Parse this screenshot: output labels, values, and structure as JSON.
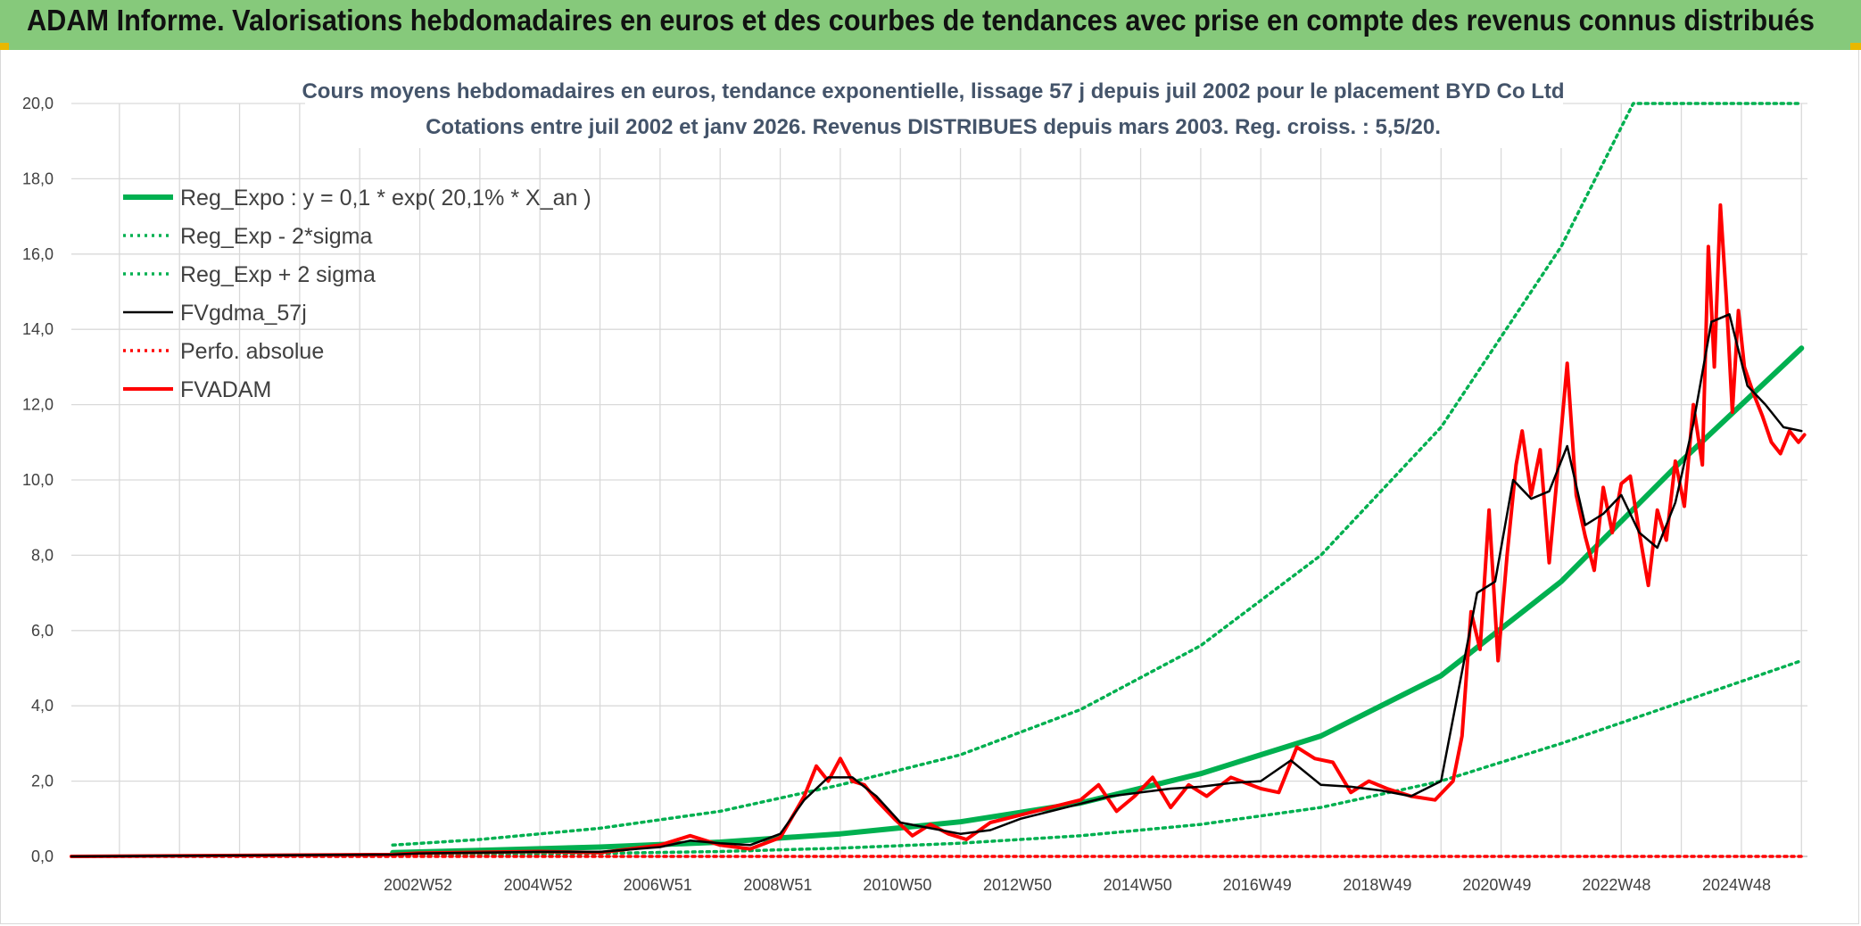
{
  "header": {
    "title": "ADAM Informe. Valorisations hebdomadaires en euros et des courbes de tendances avec prise en compte des revenus connus distribués"
  },
  "colors": {
    "header_bg": "#86c97b",
    "green": "#00b050",
    "red": "#ff0000",
    "black": "#000000",
    "grid": "#d9d9d9"
  },
  "chart_data": {
    "type": "line",
    "title": "Cours moyens hebdomadaires en euros, tendance exponentielle, lissage 57 j depuis juil 2002 pour le placement BYD Co Ltd",
    "subtitle": "Cotations entre juil 2002 et janv 2026. Revenus DISTRIBUES depuis mars 2003. Reg. croiss. : 5,5/20.",
    "ylim": [
      0,
      20
    ],
    "xlim": [
      1997.2,
      2026.1
    ],
    "y_ticks": [
      "0,0",
      "2,0",
      "4,0",
      "6,0",
      "8,0",
      "10,0",
      "12,0",
      "14,0",
      "16,0",
      "18,0",
      "20,0"
    ],
    "x_tick_labels": [
      {
        "label": "2002W52",
        "x": 2002.97
      },
      {
        "label": "2004W52",
        "x": 2004.97
      },
      {
        "label": "2006W51",
        "x": 2006.96
      },
      {
        "label": "2008W51",
        "x": 2008.96
      },
      {
        "label": "2010W50",
        "x": 2010.95
      },
      {
        "label": "2012W50",
        "x": 2012.95
      },
      {
        "label": "2014W50",
        "x": 2014.95
      },
      {
        "label": "2016W49",
        "x": 2016.94
      },
      {
        "label": "2018W49",
        "x": 2018.94
      },
      {
        "label": "2020W49",
        "x": 2020.93
      },
      {
        "label": "2022W48",
        "x": 2022.92
      },
      {
        "label": "2024W48",
        "x": 2024.92
      }
    ],
    "legend": [
      "Reg_Expo : y = 0,1 * exp( 20,1% *  X_an )",
      "Reg_Exp - 2*sigma",
      "Reg_Exp + 2 sigma",
      "FVgdma_57j",
      "Perfo. absolue",
      "FVADAM"
    ],
    "legend_position": "top-left",
    "grid": true,
    "series": [
      {
        "name": "Reg_Expo : y = 0,1 * exp( 20,1% *  X_an )",
        "style": "solid-thick",
        "color": "#00b050",
        "x": [
          2002.55,
          2004,
          2006,
          2008,
          2010,
          2012,
          2014,
          2016,
          2018,
          2020,
          2022,
          2024,
          2026
        ],
        "y": [
          0.1,
          0.16,
          0.25,
          0.38,
          0.6,
          0.92,
          1.42,
          2.2,
          3.2,
          4.8,
          7.3,
          10.5,
          13.5
        ]
      },
      {
        "name": "Reg_Exp - 2*sigma",
        "style": "dotted",
        "color": "#00b050",
        "x": [
          2002.55,
          2004,
          2006,
          2008,
          2010,
          2012,
          2014,
          2016,
          2018,
          2020,
          2022,
          2024,
          2026
        ],
        "y": [
          0.03,
          0.05,
          0.08,
          0.13,
          0.22,
          0.35,
          0.55,
          0.85,
          1.3,
          2.0,
          3.0,
          4.1,
          5.2
        ]
      },
      {
        "name": "Reg_Exp + 2 sigma",
        "style": "dotted",
        "color": "#00b050",
        "x": [
          2002.55,
          2004,
          2006,
          2008,
          2010,
          2012,
          2014,
          2016,
          2018,
          2020,
          2022,
          2023.2,
          2024,
          2026
        ],
        "y": [
          0.3,
          0.45,
          0.75,
          1.2,
          1.9,
          2.7,
          3.9,
          5.6,
          8.0,
          11.4,
          16.2,
          20.0,
          20.0,
          20.0
        ]
      },
      {
        "name": "FVgdma_57j",
        "style": "solid",
        "color": "#000000",
        "x": [
          1997.2,
          2002.55,
          2003,
          2004,
          2005,
          2006,
          2007,
          2007.5,
          2008,
          2008.5,
          2009,
          2009.4,
          2009.8,
          2010.2,
          2010.6,
          2011,
          2011.5,
          2012,
          2012.5,
          2013,
          2013.5,
          2014,
          2014.5,
          2015,
          2015.5,
          2016,
          2016.5,
          2017,
          2017.5,
          2018,
          2018.5,
          2019,
          2019.5,
          2020,
          2020.3,
          2020.6,
          2020.9,
          2021.2,
          2021.5,
          2021.8,
          2022.1,
          2022.4,
          2022.7,
          2023,
          2023.3,
          2023.6,
          2023.9,
          2024.2,
          2024.5,
          2024.8,
          2025.1,
          2025.4,
          2025.7,
          2026
        ],
        "y": [
          0,
          0.05,
          0.08,
          0.1,
          0.12,
          0.12,
          0.25,
          0.42,
          0.35,
          0.3,
          0.6,
          1.5,
          2.1,
          2.1,
          1.6,
          0.9,
          0.75,
          0.6,
          0.7,
          1.0,
          1.2,
          1.4,
          1.6,
          1.7,
          1.8,
          1.85,
          1.95,
          2.0,
          2.55,
          1.9,
          1.85,
          1.75,
          1.6,
          2.0,
          4.5,
          7.0,
          7.3,
          10.0,
          9.5,
          9.7,
          10.9,
          8.8,
          9.1,
          9.6,
          8.6,
          8.2,
          9.4,
          11.5,
          14.2,
          14.4,
          12.5,
          12.0,
          11.4,
          11.3
        ]
      },
      {
        "name": "Perfo. absolue",
        "style": "dotted",
        "color": "#ff0000",
        "x": [
          1997.2,
          2002.55,
          2026
        ],
        "y": [
          0,
          0,
          0
        ]
      },
      {
        "name": "FVADAM",
        "style": "solid-thick",
        "color": "#ff0000",
        "x": [
          1997.2,
          2002.55,
          2003,
          2004,
          2005,
          2006,
          2007,
          2007.5,
          2008,
          2008.5,
          2009,
          2009.4,
          2009.6,
          2009.8,
          2010,
          2010.2,
          2010.4,
          2010.6,
          2010.9,
          2011.2,
          2011.5,
          2011.8,
          2012.1,
          2012.5,
          2013,
          2013.5,
          2014,
          2014.3,
          2014.6,
          2014.9,
          2015.2,
          2015.5,
          2015.8,
          2016.1,
          2016.5,
          2017,
          2017.3,
          2017.6,
          2017.9,
          2018.2,
          2018.5,
          2018.8,
          2019.1,
          2019.5,
          2019.9,
          2020.2,
          2020.35,
          2020.5,
          2020.65,
          2020.8,
          2020.95,
          2021.1,
          2021.25,
          2021.35,
          2021.5,
          2021.65,
          2021.8,
          2021.95,
          2022.1,
          2022.25,
          2022.4,
          2022.55,
          2022.7,
          2022.85,
          2023,
          2023.15,
          2023.3,
          2023.45,
          2023.6,
          2023.75,
          2023.9,
          2024.05,
          2024.2,
          2024.35,
          2024.45,
          2024.55,
          2024.65,
          2024.75,
          2024.85,
          2024.95,
          2025.05,
          2025.2,
          2025.35,
          2025.5,
          2025.65,
          2025.8,
          2025.95,
          2026.05
        ],
        "y": [
          0,
          0.05,
          0.09,
          0.11,
          0.13,
          0.1,
          0.3,
          0.55,
          0.3,
          0.2,
          0.5,
          1.6,
          2.4,
          2.0,
          2.6,
          2.0,
          1.9,
          1.5,
          1.0,
          0.55,
          0.85,
          0.6,
          0.45,
          0.9,
          1.1,
          1.3,
          1.5,
          1.9,
          1.2,
          1.6,
          2.1,
          1.3,
          1.9,
          1.6,
          2.1,
          1.8,
          1.7,
          2.9,
          2.6,
          2.5,
          1.7,
          2.0,
          1.8,
          1.6,
          1.5,
          2.0,
          3.2,
          6.5,
          5.5,
          9.2,
          5.2,
          8.0,
          10.4,
          11.3,
          9.6,
          10.8,
          7.8,
          10.4,
          13.1,
          9.6,
          8.5,
          7.6,
          9.8,
          8.6,
          9.9,
          10.1,
          8.6,
          7.2,
          9.2,
          8.4,
          10.5,
          9.3,
          12.0,
          10.4,
          16.2,
          13.0,
          17.3,
          14.8,
          11.8,
          14.5,
          13.0,
          12.3,
          11.7,
          11.0,
          10.7,
          11.3,
          11.0,
          11.2
        ]
      }
    ]
  }
}
